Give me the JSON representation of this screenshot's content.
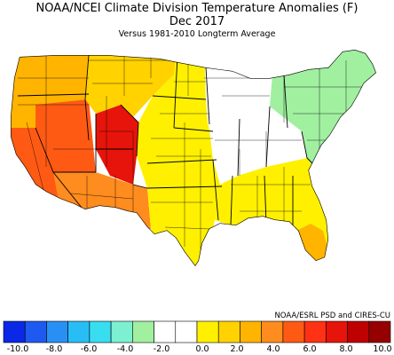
{
  "header": {
    "title": "NOAA/NCEI Climate Division Temperature Anomalies (F)",
    "month": "Dec 2017",
    "subtitle": "Versus 1981-2010 Longterm Average"
  },
  "credit": "NOAA/ESRL PSD and CIRES-CU",
  "legend": {
    "colors": [
      "#0a28e6",
      "#1e5af0",
      "#2890f5",
      "#28bef5",
      "#38ddf0",
      "#7ef0d2",
      "#a0f0a0",
      "#ffffff",
      "#ffffff",
      "#fff000",
      "#ffd200",
      "#ffb400",
      "#ff8c1e",
      "#ff5a14",
      "#ff3214",
      "#e6140a",
      "#be0000",
      "#960000"
    ],
    "ticks": [
      "-10.0",
      "-8.0",
      "-6.0",
      "-4.0",
      "-2.0",
      "0.0",
      "2.0",
      "4.0",
      "6.0",
      "8.0",
      "10.0"
    ]
  },
  "regions": [
    {
      "name": "northwest",
      "anomaly_f": 3
    },
    {
      "name": "california",
      "anomaly_f": 5
    },
    {
      "name": "great-basin",
      "anomaly_f": 5
    },
    {
      "name": "colorado-plateau",
      "anomaly_f": 7
    },
    {
      "name": "southwest",
      "anomaly_f": 4
    },
    {
      "name": "northern-rockies",
      "anomaly_f": 2
    },
    {
      "name": "northern-plains",
      "anomaly_f": 1
    },
    {
      "name": "central-plains",
      "anomaly_f": 1
    },
    {
      "name": "southern-plains",
      "anomaly_f": 0
    },
    {
      "name": "upper-midwest",
      "anomaly_f": -2
    },
    {
      "name": "ohio-valley",
      "anomaly_f": -1
    },
    {
      "name": "northeast",
      "anomaly_f": -3
    },
    {
      "name": "southeast",
      "anomaly_f": 1
    },
    {
      "name": "florida",
      "anomaly_f": 3
    }
  ]
}
